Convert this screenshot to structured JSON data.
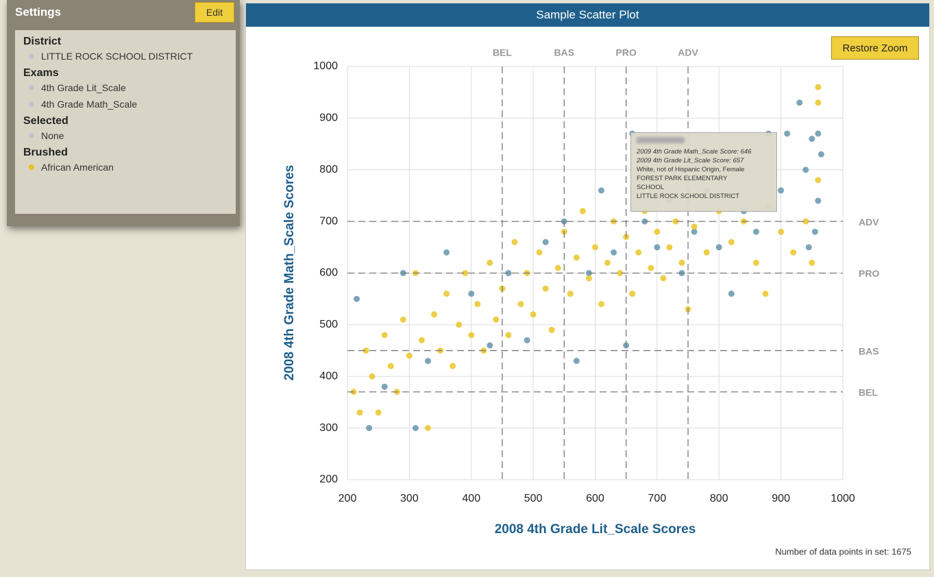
{
  "sidebar": {
    "title": "Settings",
    "edit": "Edit",
    "sections": [
      {
        "heading": "District",
        "items": [
          "LITTLE ROCK SCHOOL DISTRICT"
        ]
      },
      {
        "heading": "Exams",
        "items": [
          "4th Grade Lit_Scale",
          "4th Grade Math_Scale"
        ]
      },
      {
        "heading": "Selected",
        "items": [
          "None"
        ]
      },
      {
        "heading": "Brushed",
        "items": [
          "African American"
        ]
      }
    ]
  },
  "restore_zoom": "Restore Zoom",
  "footer": "Number of data points in set: 1675",
  "tooltip": [
    "2009 4th Grade Math_Scale Score: 646",
    "2009 4th Grade Lit_Scale Score: 657",
    "White, not of Hispanic Origin, Female",
    "FOREST PARK ELEMENTARY",
    "SCHOOL",
    "LITTLE ROCK SCHOOL DISTRICT"
  ],
  "chart_data": {
    "type": "scatter",
    "title": "Sample Scatter Plot",
    "x_label": "2008 4th Grade Lit_Scale Scores",
    "y_label": "2008 4th Grade Math_Scale Scores",
    "xlim": [
      200,
      1000
    ],
    "ylim": [
      200,
      1000
    ],
    "xticks": [
      200,
      300,
      400,
      500,
      600,
      700,
      800,
      900,
      1000
    ],
    "yticks": [
      200,
      300,
      400,
      500,
      600,
      700,
      800,
      900,
      1000
    ],
    "grid": true,
    "x_reference_lines": [
      {
        "value": 450,
        "label": "BEL"
      },
      {
        "value": 550,
        "label": "BAS"
      },
      {
        "value": 650,
        "label": "PRO"
      },
      {
        "value": 750,
        "label": "ADV"
      }
    ],
    "y_reference_lines": [
      {
        "value": 700,
        "label": "ADV"
      },
      {
        "value": 600,
        "label": "PRO"
      },
      {
        "value": 450,
        "label": "BAS"
      },
      {
        "value": 370,
        "label": "BEL"
      }
    ],
    "series": [
      {
        "color": "#5b8fa8",
        "x": [
          215,
          235,
          260,
          290,
          310,
          330,
          360,
          400,
          430,
          460,
          490,
          520,
          550,
          570,
          590,
          610,
          630,
          650,
          660,
          680,
          700,
          720,
          740,
          760,
          780,
          800,
          820,
          840,
          860,
          880,
          900,
          910,
          930,
          940,
          950,
          960,
          960,
          965,
          955,
          945
        ],
        "values": [
          550,
          300,
          380,
          600,
          300,
          430,
          640,
          560,
          460,
          600,
          470,
          660,
          700,
          430,
          600,
          760,
          640,
          460,
          870,
          700,
          650,
          740,
          600,
          680,
          760,
          650,
          560,
          720,
          680,
          870,
          760,
          870,
          930,
          800,
          860,
          870,
          740,
          830,
          680,
          650
        ]
      },
      {
        "name": "African American",
        "color": "#e8c21a",
        "x": [
          210,
          220,
          230,
          240,
          250,
          260,
          270,
          280,
          290,
          300,
          310,
          320,
          330,
          340,
          350,
          360,
          370,
          380,
          390,
          400,
          410,
          420,
          430,
          440,
          450,
          460,
          470,
          480,
          490,
          500,
          510,
          520,
          530,
          540,
          550,
          560,
          570,
          580,
          590,
          600,
          610,
          620,
          630,
          640,
          650,
          660,
          670,
          680,
          690,
          700,
          710,
          720,
          730,
          740,
          750,
          760,
          780,
          800,
          820,
          840,
          860,
          880,
          900,
          920,
          940,
          960,
          960,
          960,
          950,
          875
        ],
        "values": [
          370,
          330,
          450,
          400,
          330,
          480,
          420,
          370,
          510,
          440,
          600,
          470,
          300,
          520,
          450,
          560,
          420,
          500,
          600,
          480,
          540,
          450,
          620,
          510,
          570,
          480,
          660,
          540,
          600,
          520,
          640,
          570,
          490,
          610,
          680,
          560,
          630,
          720,
          590,
          650,
          540,
          620,
          700,
          600,
          670,
          560,
          640,
          720,
          610,
          680,
          590,
          650,
          700,
          620,
          530,
          690,
          640,
          720,
          660,
          700,
          620,
          730,
          680,
          640,
          700,
          930,
          960,
          780,
          620,
          560
        ]
      }
    ]
  }
}
